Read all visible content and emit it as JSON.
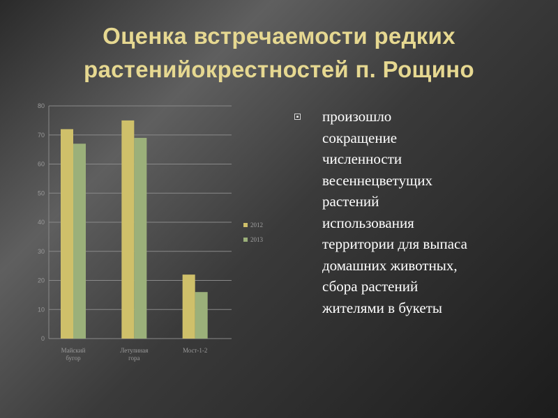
{
  "title": {
    "line1": "Оценка встречаемости редких",
    "line2": "растенийокрестностей  п. Рощино"
  },
  "bullet": {
    "icon": "square-bullet-icon",
    "lines": [
      "произошло",
      "сокращение",
      "численности",
      "весеннецветущих",
      "растений",
      "использования",
      "территории для выпаса",
      "домашних животных,",
      "сбора растений",
      "жителями в букеты"
    ]
  },
  "colors": {
    "series_2012": "#cfc06a",
    "series_2013": "#9bb07a",
    "title": "#e6d891",
    "grid": "#8a8a8a"
  },
  "chart_data": {
    "type": "bar",
    "categories_lines": [
      [
        "Майский",
        "бугор"
      ],
      [
        "Летулиная",
        "гора"
      ],
      [
        "Мост-1-2"
      ]
    ],
    "series": [
      {
        "name": "2012",
        "values": [
          72,
          75,
          22
        ]
      },
      {
        "name": "2013",
        "values": [
          67,
          69,
          16
        ]
      }
    ],
    "ylim": [
      0,
      80
    ],
    "yticks": [
      "0",
      "10",
      "20",
      "30",
      "40",
      "50",
      "60",
      "70",
      "80"
    ],
    "grid": true,
    "legend": "right",
    "title": "",
    "xlabel": "",
    "ylabel": ""
  }
}
